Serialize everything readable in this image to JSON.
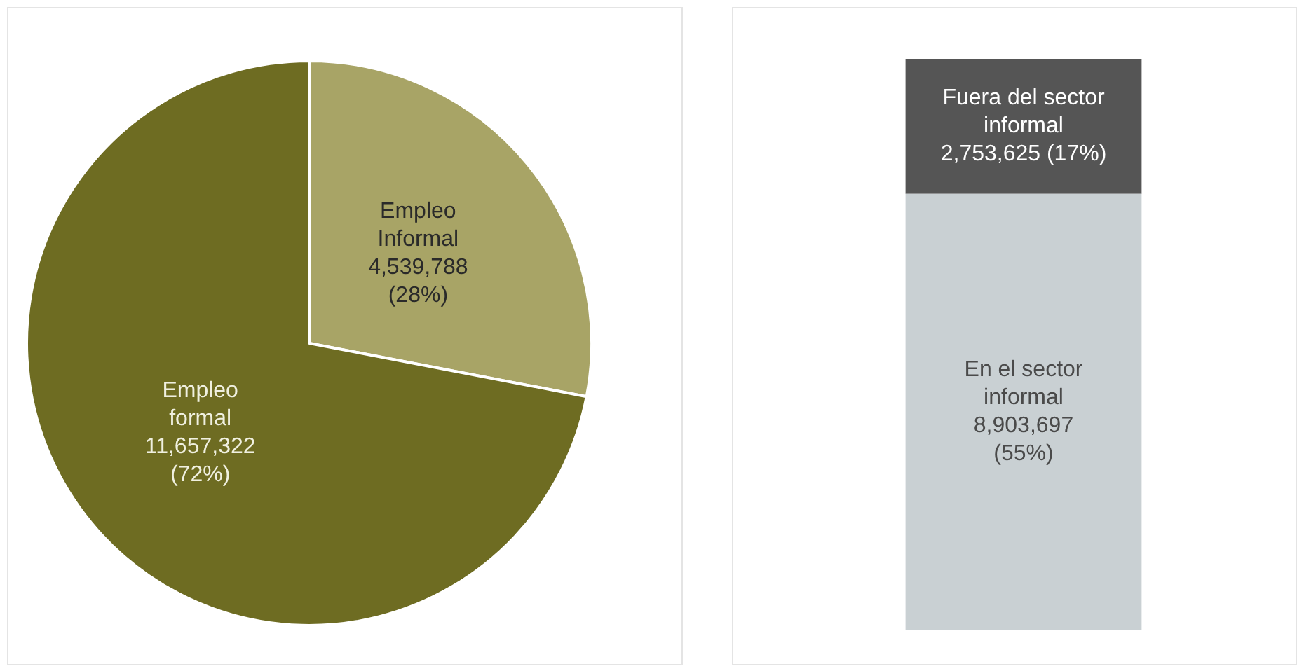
{
  "chart_data": [
    {
      "type": "pie",
      "categories": [
        "Empleo Informal",
        "Empleo formal"
      ],
      "values": [
        4539788,
        11657322
      ],
      "colors": [
        "#a8a466",
        "#6e6c22"
      ],
      "value_labels": [
        "4,539,788 (28%)",
        "11,657,322 (72%)"
      ]
    },
    {
      "type": "bar",
      "categories": [
        null
      ],
      "stacked": true,
      "ylim": [
        0,
        11657322
      ],
      "tick_labels": false,
      "series": [
        {
          "name": "En el sector informal",
          "color": "#c9d0d3",
          "values": [
            8903697
          ],
          "value_labels": [
            "8,903,697 (55%)"
          ]
        },
        {
          "name": "Fuera del sector informal",
          "color": "#555555",
          "values": [
            2753625
          ],
          "value_labels": [
            "2,753,625 (17%)"
          ]
        }
      ]
    }
  ]
}
